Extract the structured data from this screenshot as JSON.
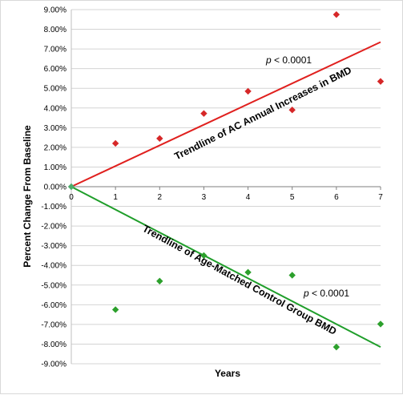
{
  "chart_data": {
    "type": "scatter",
    "xlabel": "Years",
    "ylabel": "Percent Change From Baseline",
    "xlim": [
      0,
      7
    ],
    "ylim": [
      -9,
      9
    ],
    "x_ticks": [
      "0",
      "1",
      "2",
      "3",
      "4",
      "5",
      "6",
      "7"
    ],
    "y_ticks": [
      "9.00%",
      "8.00%",
      "7.00%",
      "6.00%",
      "5.00%",
      "4.00%",
      "3.00%",
      "2.00%",
      "1.00%",
      "0.00%",
      "-1.00%",
      "-2.00%",
      "-3.00%",
      "-4.00%",
      "-5.00%",
      "-6.00%",
      "-7.00%",
      "-8.00%",
      "-9.00%"
    ],
    "grid": true,
    "series": [
      {
        "color": "#d62728",
        "marker": "diamond",
        "x": [
          1,
          2,
          3,
          4,
          5,
          6,
          7
        ],
        "y": [
          2.2,
          2.45,
          3.72,
          4.85,
          3.9,
          8.75,
          5.35
        ]
      },
      {
        "color": "#2ca02c",
        "marker": "diamond",
        "x": [
          1,
          2,
          3,
          4,
          5,
          6,
          7
        ],
        "y": [
          -6.25,
          -4.8,
          -3.5,
          -4.35,
          -4.5,
          -8.15,
          -6.98
        ]
      }
    ],
    "origin_point": {
      "x": 0,
      "y": 0,
      "color": "#4cab6a"
    },
    "trendlines": [
      {
        "color": "#e0201e",
        "from": [
          0,
          0
        ],
        "to": [
          7,
          7.35
        ]
      },
      {
        "color": "#1f9e2a",
        "from": [
          0,
          0
        ],
        "to": [
          7,
          -8.15
        ]
      }
    ],
    "annotations": {
      "top_p": {
        "p": "p",
        "rest": " < 0.0001"
      },
      "top_label": "Trendline of AC Annual Increases in BMD",
      "bottom_label": "Trendline of Age-Matched Control Group BMD",
      "bottom_p": {
        "p": "p",
        "rest": " < 0.0001"
      }
    }
  }
}
